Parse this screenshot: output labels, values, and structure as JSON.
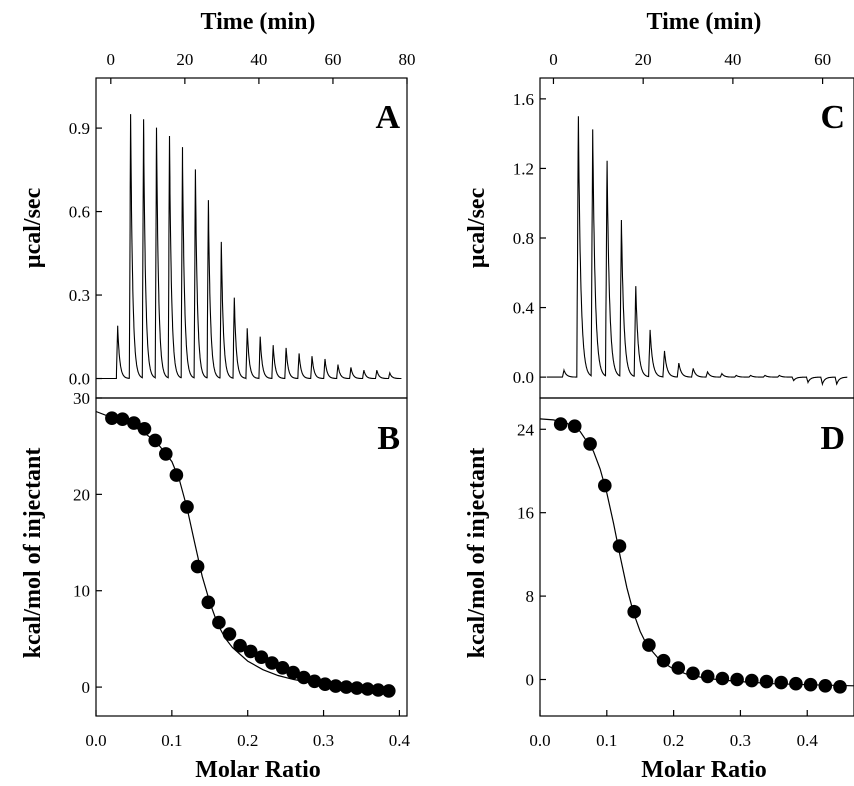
{
  "chart_data": [
    {
      "panel": "A",
      "type": "line",
      "xlabel": "Time (min)",
      "ylabel": "µcal/sec",
      "xlim": [
        -4,
        80
      ],
      "ylim": [
        -0.07,
        1.08
      ],
      "xticks": [
        0,
        20,
        40,
        60,
        80
      ],
      "yticks": [
        0.0,
        0.3,
        0.6,
        0.9
      ],
      "ytick_labels": [
        "0.0",
        "0.3",
        "0.6",
        "0.9"
      ],
      "injections": {
        "start_time": 1.5,
        "interval": 3.5,
        "peak_heights": [
          0.19,
          0.95,
          0.93,
          0.9,
          0.87,
          0.83,
          0.75,
          0.64,
          0.49,
          0.29,
          0.18,
          0.15,
          0.12,
          0.11,
          0.09,
          0.08,
          0.07,
          0.05,
          0.04,
          0.03,
          0.03,
          0.02,
          0.02,
          0.02,
          0.01,
          0.01,
          0.01,
          0.01
        ]
      }
    },
    {
      "panel": "B",
      "type": "scatter",
      "xlabel": "Molar Ratio",
      "ylabel": "kcal/mol of injectant",
      "xlim": [
        0.0,
        0.41
      ],
      "ylim": [
        -3,
        30
      ],
      "xticks": [
        0.0,
        0.1,
        0.2,
        0.3,
        0.4
      ],
      "yticks": [
        0,
        10,
        20,
        30
      ],
      "series": [
        {
          "x": [
            0.021,
            0.035,
            0.05,
            0.064,
            0.078,
            0.092,
            0.106,
            0.12,
            0.134,
            0.148,
            0.162,
            0.176,
            0.19,
            0.204,
            0.218,
            0.232,
            0.246,
            0.26,
            0.274,
            0.288,
            0.302,
            0.316,
            0.33,
            0.344,
            0.358,
            0.372,
            0.386
          ],
          "y": [
            27.9,
            27.8,
            27.4,
            26.8,
            25.6,
            24.2,
            22.0,
            18.7,
            12.5,
            8.8,
            6.7,
            5.5,
            4.3,
            3.7,
            3.1,
            2.5,
            2.0,
            1.5,
            1.0,
            0.6,
            0.3,
            0.1,
            0.0,
            -0.1,
            -0.2,
            -0.3,
            -0.4
          ]
        }
      ],
      "fit": {
        "x": [
          0.0,
          0.02,
          0.04,
          0.06,
          0.08,
          0.1,
          0.11,
          0.12,
          0.13,
          0.14,
          0.15,
          0.16,
          0.17,
          0.18,
          0.2,
          0.22,
          0.24,
          0.26,
          0.28,
          0.3,
          0.32,
          0.34,
          0.36,
          0.38,
          0.39
        ],
        "y": [
          28.6,
          28.0,
          27.4,
          26.6,
          25.4,
          23.4,
          21.5,
          18.6,
          15.0,
          11.5,
          8.8,
          6.6,
          5.1,
          4.1,
          2.7,
          1.8,
          1.2,
          0.8,
          0.5,
          0.3,
          0.2,
          0.1,
          0.05,
          0.0,
          0.0
        ]
      }
    },
    {
      "panel": "C",
      "type": "line",
      "xlabel": "Time (min)",
      "ylabel": "µcal/sec",
      "xlim": [
        -3,
        67
      ],
      "ylim": [
        -0.12,
        1.72
      ],
      "xticks": [
        0,
        20,
        40,
        60
      ],
      "yticks": [
        0.0,
        0.4,
        0.8,
        1.2,
        1.6
      ],
      "ytick_labels": [
        "0.0",
        "0.4",
        "0.8",
        "1.2",
        "1.6"
      ],
      "injections": {
        "start_time": 2.0,
        "interval": 3.2,
        "peak_heights": [
          0.04,
          1.5,
          1.42,
          1.24,
          0.9,
          0.52,
          0.27,
          0.15,
          0.08,
          0.05,
          0.03,
          0.02,
          0.01,
          0.01,
          0.01,
          0.01,
          -0.02,
          -0.03,
          -0.04,
          -0.04
        ]
      }
    },
    {
      "panel": "D",
      "type": "scatter",
      "xlabel": "Molar Ratio",
      "ylabel": "kcal/mol of injectant",
      "xlim": [
        0.0,
        0.47
      ],
      "ylim": [
        -3.5,
        27
      ],
      "xticks": [
        0.0,
        0.1,
        0.2,
        0.3,
        0.4
      ],
      "yticks": [
        0,
        8,
        16,
        24
      ],
      "series": [
        {
          "x": [
            0.031,
            0.052,
            0.075,
            0.097,
            0.119,
            0.141,
            0.163,
            0.185,
            0.207,
            0.229,
            0.251,
            0.273,
            0.295,
            0.317,
            0.339,
            0.361,
            0.383,
            0.405,
            0.427,
            0.449
          ],
          "y": [
            24.5,
            24.3,
            22.6,
            18.6,
            12.8,
            6.5,
            3.3,
            1.8,
            1.1,
            0.6,
            0.3,
            0.1,
            0.0,
            -0.1,
            -0.2,
            -0.3,
            -0.4,
            -0.5,
            -0.6,
            -0.7
          ]
        }
      ],
      "fit": {
        "x": [
          0.0,
          0.02,
          0.04,
          0.06,
          0.08,
          0.09,
          0.1,
          0.11,
          0.12,
          0.13,
          0.14,
          0.15,
          0.16,
          0.18,
          0.2,
          0.22,
          0.25,
          0.3,
          0.35,
          0.4,
          0.47
        ],
        "y": [
          25.0,
          24.9,
          24.6,
          23.8,
          21.9,
          20.2,
          17.9,
          15.0,
          11.8,
          8.8,
          6.4,
          4.6,
          3.3,
          1.8,
          1.0,
          0.5,
          0.1,
          -0.2,
          -0.4,
          -0.5,
          -0.6
        ]
      }
    }
  ]
}
